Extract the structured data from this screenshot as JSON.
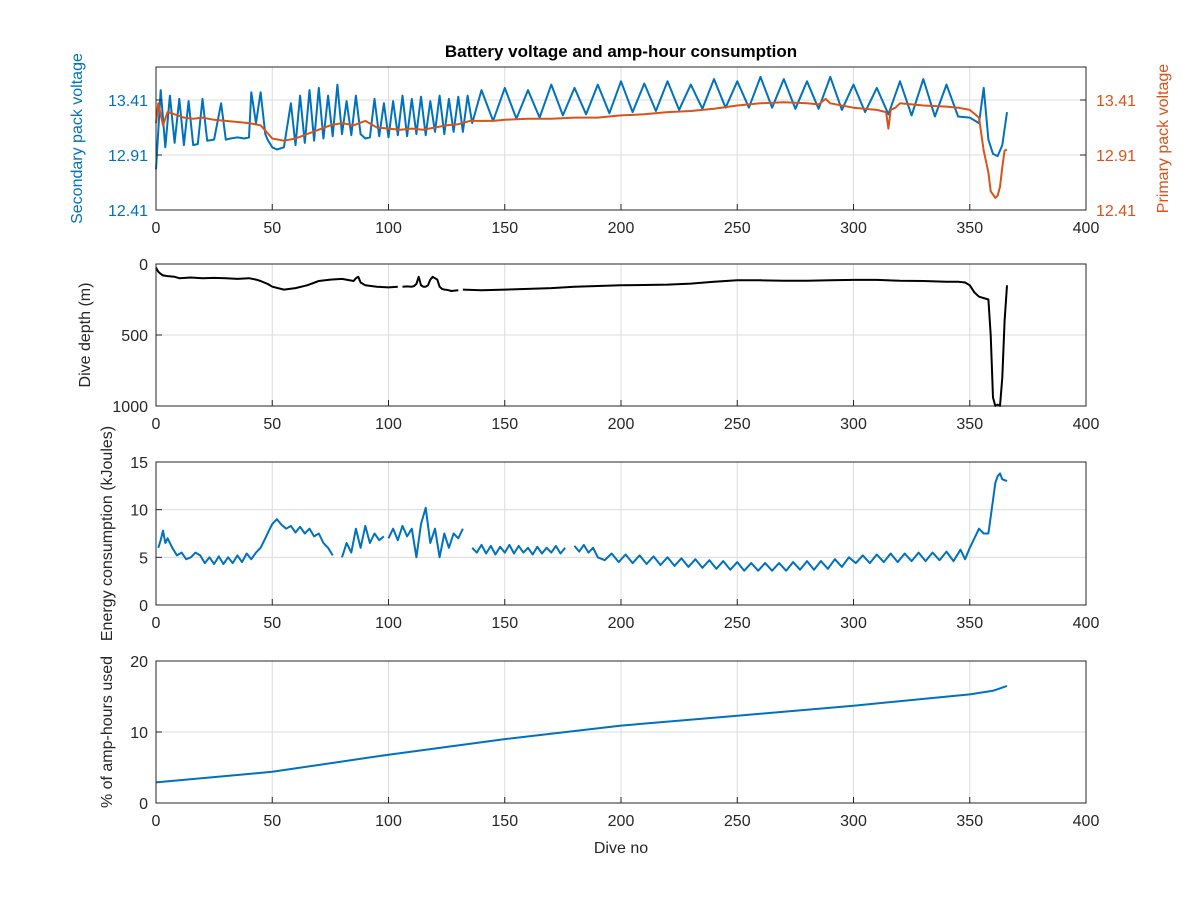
{
  "figure_title": "Battery voltage and amp-hour consumption",
  "colors": {
    "blue": "#0072BD",
    "orange": "#D95319",
    "black": "#000000",
    "axis": "#262626",
    "grid": "#dcdcdc"
  },
  "chart_data": [
    {
      "type": "line",
      "title": "Battery voltage and amp-hour consumption",
      "xlabel": "",
      "xlim": [
        0,
        400
      ],
      "xticks": [
        0,
        50,
        100,
        150,
        200,
        250,
        300,
        350,
        400
      ],
      "ylabel_left": "Secondary pack voltage",
      "ylabel_right": "Primary pack voltage",
      "ylim": [
        12.41,
        13.71
      ],
      "yticks": [
        12.41,
        12.91,
        13.41
      ],
      "ytick_labels": [
        "12.41",
        "12.91",
        "13.41"
      ],
      "grid": true,
      "series": [
        {
          "axis": "left",
          "color": "#0072BD",
          "x": [
            0,
            2,
            4,
            6,
            8,
            10,
            12,
            14,
            16,
            18,
            20,
            22,
            25,
            28,
            30,
            32,
            35,
            38,
            40,
            41,
            43,
            45,
            47,
            48,
            50,
            52,
            55,
            58,
            60,
            62,
            64,
            66,
            68,
            70,
            72,
            74,
            76,
            78,
            80,
            82,
            84,
            86,
            88,
            90,
            92,
            94,
            96,
            98,
            100,
            102,
            104,
            106,
            108,
            110,
            112,
            114,
            116,
            118,
            120,
            122,
            124,
            126,
            128,
            130,
            132,
            134,
            136,
            140,
            145,
            150,
            155,
            160,
            165,
            170,
            175,
            180,
            185,
            190,
            195,
            200,
            205,
            210,
            215,
            220,
            225,
            230,
            235,
            240,
            245,
            250,
            255,
            260,
            265,
            270,
            275,
            280,
            285,
            290,
            295,
            300,
            305,
            310,
            315,
            320,
            325,
            330,
            335,
            340,
            345,
            350,
            354,
            356,
            358,
            360,
            362,
            364,
            366
          ],
          "y": [
            12.78,
            13.5,
            12.98,
            13.45,
            13.02,
            13.42,
            13.0,
            13.4,
            13.0,
            13.01,
            13.42,
            13.04,
            13.05,
            13.38,
            13.05,
            13.06,
            13.07,
            13.06,
            13.07,
            13.48,
            13.2,
            13.48,
            13.1,
            13.05,
            12.98,
            12.96,
            12.98,
            13.38,
            13.0,
            13.45,
            13.02,
            13.5,
            13.04,
            13.52,
            13.06,
            13.45,
            13.08,
            13.55,
            13.1,
            13.4,
            13.09,
            13.45,
            13.1,
            13.06,
            13.07,
            13.42,
            13.08,
            13.38,
            13.07,
            13.4,
            13.09,
            13.45,
            13.08,
            13.42,
            13.1,
            13.44,
            13.09,
            13.4,
            13.12,
            13.45,
            13.1,
            13.42,
            13.12,
            13.44,
            13.12,
            13.45,
            13.2,
            13.5,
            13.22,
            13.52,
            13.24,
            13.5,
            13.25,
            13.55,
            13.27,
            13.52,
            13.28,
            13.55,
            13.29,
            13.58,
            13.3,
            13.56,
            13.31,
            13.58,
            13.32,
            13.55,
            13.33,
            13.6,
            13.34,
            13.58,
            13.34,
            13.62,
            13.34,
            13.6,
            13.33,
            13.58,
            13.33,
            13.62,
            13.32,
            13.55,
            13.3,
            13.52,
            13.28,
            13.58,
            13.27,
            13.6,
            13.26,
            13.55,
            13.26,
            13.25,
            13.2,
            13.52,
            13.05,
            12.92,
            12.9,
            13.0,
            13.3
          ]
        },
        {
          "axis": "right",
          "color": "#D95319",
          "x": [
            0,
            1,
            3,
            5,
            8,
            12,
            16,
            20,
            25,
            30,
            35,
            40,
            45,
            50,
            55,
            60,
            65,
            70,
            75,
            80,
            85,
            90,
            95,
            100,
            105,
            110,
            115,
            120,
            125,
            130,
            135,
            140,
            145,
            150,
            160,
            170,
            180,
            190,
            200,
            210,
            220,
            230,
            240,
            250,
            260,
            270,
            280,
            285,
            288,
            290,
            300,
            310,
            314,
            315,
            316,
            318,
            320,
            330,
            340,
            345,
            350,
            354,
            356,
            358,
            359,
            360,
            361,
            362,
            363,
            364,
            365,
            366
          ],
          "y": [
            13.2,
            13.38,
            13.18,
            13.3,
            13.28,
            13.25,
            13.24,
            13.25,
            13.23,
            13.22,
            13.21,
            13.2,
            13.18,
            13.06,
            13.04,
            13.06,
            13.1,
            13.14,
            13.18,
            13.2,
            13.18,
            13.22,
            13.16,
            13.15,
            13.14,
            13.15,
            13.14,
            13.16,
            13.18,
            13.19,
            13.22,
            13.22,
            13.22,
            13.23,
            13.24,
            13.24,
            13.25,
            13.25,
            13.27,
            13.28,
            13.3,
            13.31,
            13.33,
            13.36,
            13.38,
            13.39,
            13.38,
            13.37,
            13.42,
            13.38,
            13.34,
            13.32,
            13.3,
            13.15,
            13.32,
            13.34,
            13.38,
            13.36,
            13.35,
            13.34,
            13.32,
            13.25,
            12.95,
            12.75,
            12.58,
            12.55,
            12.52,
            12.54,
            12.62,
            12.8,
            12.95,
            12.96
          ]
        }
      ]
    },
    {
      "type": "line",
      "xlabel": "",
      "ylabel": "Dive depth (m)",
      "xlim": [
        0,
        400
      ],
      "xticks": [
        0,
        50,
        100,
        150,
        200,
        250,
        300,
        350,
        400
      ],
      "ylim": [
        0,
        1000
      ],
      "yticks": [
        0,
        500,
        1000
      ],
      "y_reversed": true,
      "grid": true,
      "series": [
        {
          "color": "#000000",
          "x": [
            0,
            1,
            2,
            3,
            5,
            8,
            10,
            15,
            20,
            25,
            30,
            35,
            40,
            43,
            45,
            48,
            50,
            55,
            60,
            65,
            70,
            75,
            80,
            85,
            86,
            87,
            88,
            90,
            95,
            100,
            104
          ],
          "y": [
            25,
            55,
            70,
            80,
            85,
            90,
            100,
            95,
            100,
            98,
            100,
            105,
            100,
            110,
            120,
            140,
            160,
            180,
            170,
            150,
            120,
            110,
            105,
            120,
            100,
            90,
            130,
            150,
            160,
            165,
            160
          ]
        },
        {
          "color": "#000000",
          "x": [
            106,
            108,
            110,
            111,
            112,
            113,
            114,
            115,
            116,
            117,
            118,
            119,
            120,
            121,
            122,
            123,
            124,
            125,
            126,
            127,
            128,
            130
          ],
          "y": [
            160,
            158,
            160,
            155,
            140,
            90,
            150,
            160,
            160,
            150,
            110,
            90,
            100,
            110,
            160,
            175,
            180,
            182,
            185,
            190,
            188,
            185
          ]
        },
        {
          "color": "#000000",
          "x": [
            132,
            140,
            150,
            160,
            170,
            180,
            190,
            200,
            210,
            220,
            230,
            240,
            250,
            260,
            270,
            280,
            290,
            300,
            310,
            320,
            330,
            340,
            345,
            348,
            350,
            352,
            354,
            356,
            358,
            359,
            360,
            361,
            362,
            363,
            364,
            365,
            366
          ],
          "y": [
            180,
            185,
            180,
            175,
            170,
            160,
            155,
            150,
            148,
            145,
            138,
            125,
            115,
            115,
            118,
            118,
            115,
            112,
            112,
            118,
            120,
            125,
            125,
            130,
            150,
            200,
            230,
            240,
            250,
            500,
            940,
            1000,
            990,
            1000,
            800,
            400,
            150
          ]
        }
      ]
    },
    {
      "type": "line",
      "xlabel": "",
      "ylabel": "Energy consumption (kJoules)",
      "xlim": [
        0,
        400
      ],
      "xticks": [
        0,
        50,
        100,
        150,
        200,
        250,
        300,
        350,
        400
      ],
      "ylim": [
        0,
        15
      ],
      "yticks": [
        0,
        5,
        10,
        15
      ],
      "grid": true,
      "series": [
        {
          "color": "#0072BD",
          "x": [
            1,
            2,
            3,
            4,
            5,
            7,
            9,
            11,
            13,
            15,
            17,
            19,
            21,
            23,
            25,
            27,
            29,
            31,
            33,
            35,
            37,
            39,
            41,
            43,
            45,
            47,
            49,
            50,
            52,
            54,
            56,
            58,
            60,
            62,
            64,
            66,
            68,
            70,
            72,
            74,
            76
          ],
          "y": [
            6.0,
            6.8,
            7.8,
            6.5,
            7.0,
            6.0,
            5.2,
            5.5,
            4.8,
            5.0,
            5.5,
            5.2,
            4.4,
            5.0,
            4.3,
            5.1,
            4.3,
            5.0,
            4.4,
            5.2,
            4.5,
            5.4,
            4.8,
            5.5,
            6.0,
            7.0,
            8.0,
            8.5,
            9.0,
            8.4,
            8.0,
            8.3,
            7.6,
            8.2,
            7.5,
            8.0,
            7.2,
            7.5,
            6.5,
            6.0,
            5.2
          ]
        },
        {
          "color": "#0072BD",
          "x": [
            80,
            82,
            84,
            86,
            88,
            90,
            92,
            94,
            96,
            98
          ],
          "y": [
            5.0,
            6.5,
            5.5,
            8.0,
            6.0,
            8.3,
            6.5,
            7.5,
            6.8,
            7.2
          ]
        },
        {
          "color": "#0072BD",
          "x": [
            100,
            102,
            104,
            106,
            108,
            110,
            112,
            114,
            116,
            118,
            120,
            122,
            124,
            126,
            128,
            130,
            132
          ],
          "y": [
            7.0,
            8.0,
            6.8,
            8.3,
            7.2,
            8.0,
            5.0,
            8.5,
            10.2,
            6.5,
            8.0,
            5.0,
            7.5,
            6.0,
            7.5,
            7.0,
            8.0
          ]
        },
        {
          "color": "#0072BD",
          "x": [
            136,
            138,
            140,
            142,
            144,
            146,
            148,
            150,
            152,
            154,
            156,
            158,
            160,
            162,
            164,
            166,
            168,
            170,
            172,
            174,
            176
          ],
          "y": [
            6.0,
            5.5,
            6.3,
            5.4,
            6.2,
            5.3,
            6.1,
            5.5,
            6.3,
            5.4,
            6.2,
            5.5,
            6.0,
            5.3,
            6.1,
            5.4,
            6.0,
            5.5,
            6.2,
            5.4,
            6.0
          ]
        },
        {
          "color": "#0072BD",
          "x": [
            180,
            182,
            184,
            186,
            188,
            190,
            193,
            196,
            199,
            202,
            205,
            208,
            211,
            214,
            217,
            220,
            223,
            226,
            229,
            232,
            235,
            238,
            241,
            244,
            247,
            250,
            253,
            256,
            259,
            262,
            265,
            268,
            271,
            274,
            277,
            280,
            283,
            286,
            289,
            292,
            295,
            298,
            301,
            304,
            307,
            310,
            313,
            316,
            319,
            322,
            325,
            328,
            331,
            334,
            337,
            340,
            343,
            346,
            348,
            350,
            352,
            354,
            356,
            358,
            360,
            361,
            362,
            363,
            364,
            366
          ],
          "y": [
            6.2,
            5.6,
            6.3,
            5.5,
            6.0,
            5.0,
            4.7,
            5.4,
            4.5,
            5.3,
            4.4,
            5.2,
            4.3,
            5.1,
            4.2,
            5.0,
            4.1,
            4.9,
            4.0,
            4.8,
            3.9,
            4.7,
            3.8,
            4.6,
            3.7,
            4.5,
            3.6,
            4.4,
            3.6,
            4.4,
            3.6,
            4.4,
            3.6,
            4.5,
            3.7,
            4.6,
            3.7,
            4.6,
            3.8,
            4.8,
            4.0,
            5.0,
            4.4,
            5.2,
            4.4,
            5.3,
            4.5,
            5.4,
            4.5,
            5.4,
            4.6,
            5.5,
            4.6,
            5.5,
            4.7,
            5.6,
            4.6,
            5.8,
            4.8,
            6.0,
            7.0,
            8.0,
            7.5,
            7.5,
            11.0,
            12.8,
            13.5,
            13.8,
            13.2,
            13.0
          ]
        }
      ]
    },
    {
      "type": "line",
      "xlabel": "Dive no",
      "ylabel": "% of amp-hours used",
      "xlim": [
        0,
        400
      ],
      "xticks": [
        0,
        50,
        100,
        150,
        200,
        250,
        300,
        350,
        400
      ],
      "ylim": [
        0,
        20
      ],
      "yticks": [
        0,
        10,
        20
      ],
      "grid": true,
      "series": [
        {
          "color": "#0072BD",
          "x": [
            0,
            50,
            100,
            150,
            200,
            250,
            300,
            350,
            360,
            366
          ],
          "y": [
            2.9,
            4.4,
            6.8,
            9.0,
            10.9,
            12.3,
            13.7,
            15.3,
            15.8,
            16.5
          ]
        }
      ]
    }
  ]
}
